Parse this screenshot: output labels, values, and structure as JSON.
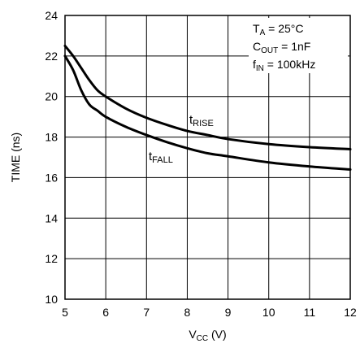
{
  "chart_data": {
    "type": "line",
    "title": "",
    "xlabel": {
      "main": "V",
      "sub": "CC",
      "unit": " (V)"
    },
    "ylabel": "TIME (ns)",
    "xlim": [
      5,
      12
    ],
    "ylim": [
      10,
      24
    ],
    "xticks": [
      5,
      6,
      7,
      8,
      9,
      10,
      11,
      12
    ],
    "yticks": [
      10,
      12,
      14,
      16,
      18,
      20,
      22,
      24
    ],
    "grid": true,
    "series": [
      {
        "id": "rise",
        "name": {
          "main": "t",
          "sub": "RISE"
        },
        "color": "#000000",
        "x": [
          5,
          5.2,
          5.4,
          5.6,
          5.8,
          6,
          6.5,
          7,
          7.5,
          8,
          8.5,
          9,
          10,
          11,
          12
        ],
        "y": [
          22.5,
          22.0,
          21.4,
          20.8,
          20.3,
          20.0,
          19.4,
          18.95,
          18.6,
          18.3,
          18.1,
          17.9,
          17.65,
          17.5,
          17.4
        ]
      },
      {
        "id": "fall",
        "name": {
          "main": "t",
          "sub": "FALL"
        },
        "color": "#000000",
        "x": [
          5,
          5.2,
          5.4,
          5.6,
          5.8,
          6,
          6.5,
          7,
          7.5,
          8,
          8.5,
          9,
          10,
          11,
          12
        ],
        "y": [
          22.0,
          21.3,
          20.3,
          19.6,
          19.3,
          19.0,
          18.5,
          18.1,
          17.75,
          17.45,
          17.2,
          17.05,
          16.75,
          16.55,
          16.4
        ]
      }
    ],
    "annotations": [
      {
        "main": "T",
        "sub": "A",
        "rest": " = 25°C"
      },
      {
        "main": "C",
        "sub": "OUT",
        "rest": " = 1nF"
      },
      {
        "main": "f",
        "sub": "IN",
        "rest": " = 100kHz"
      }
    ]
  }
}
